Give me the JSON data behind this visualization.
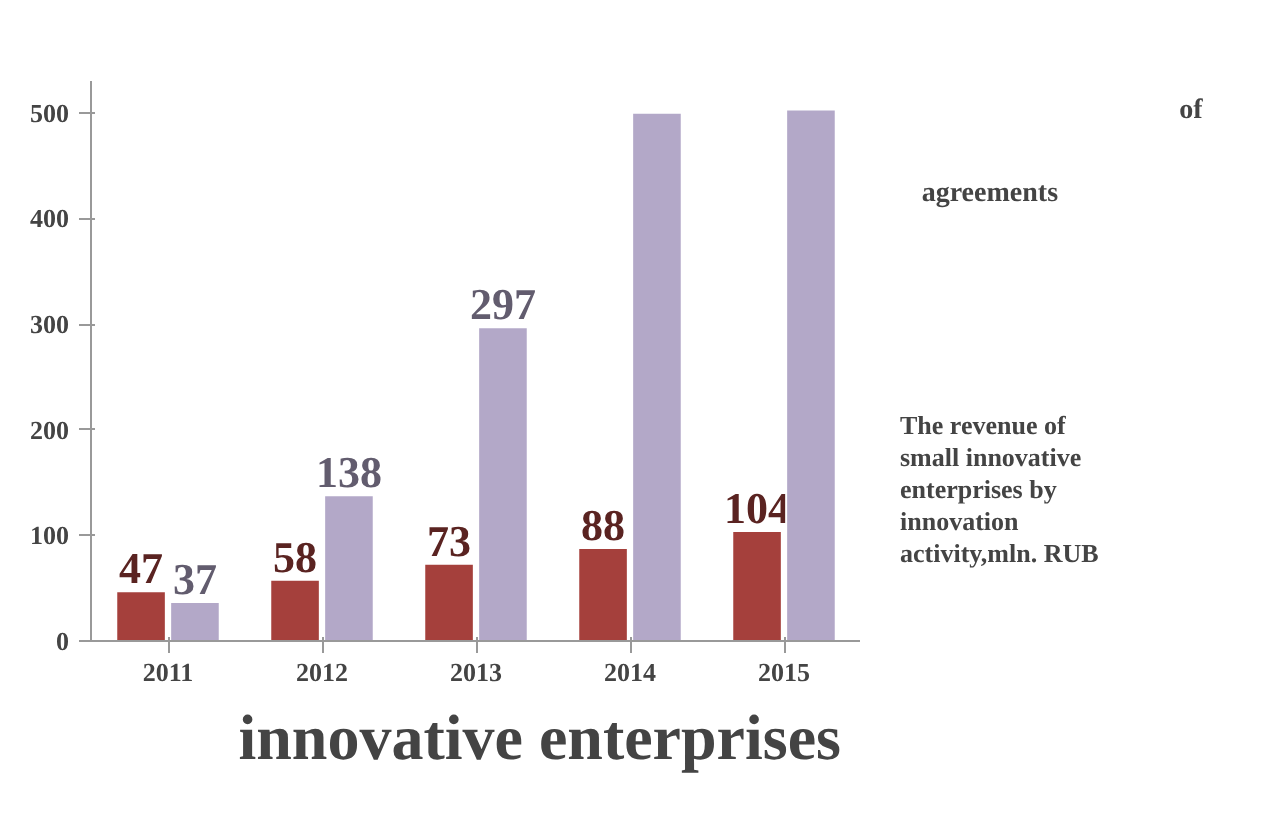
{
  "chart_data": {
    "type": "bar",
    "title": "innovative enterprises",
    "categories": [
      "2011",
      "2012",
      "2013",
      "2014",
      "2015"
    ],
    "series": [
      {
        "color": "#a5403c",
        "values": [
          47,
          58,
          73,
          88,
          104
        ],
        "value_labels": [
          "47",
          "58",
          "73",
          "88",
          "104"
        ]
      },
      {
        "name": "The revenue of small innovative enterprises by innovation activity,mln. RUB",
        "color": "#b3a8c8",
        "values": [
          37,
          138,
          297,
          500,
          503
        ],
        "value_labels": [
          "37",
          "138",
          "297",
          null,
          null
        ]
      }
    ],
    "annotations": [
      "of",
      "agreements"
    ],
    "ylim": [
      0,
      530
    ],
    "yticks": [
      0,
      100,
      200,
      300,
      400,
      500
    ],
    "legend": "right"
  }
}
